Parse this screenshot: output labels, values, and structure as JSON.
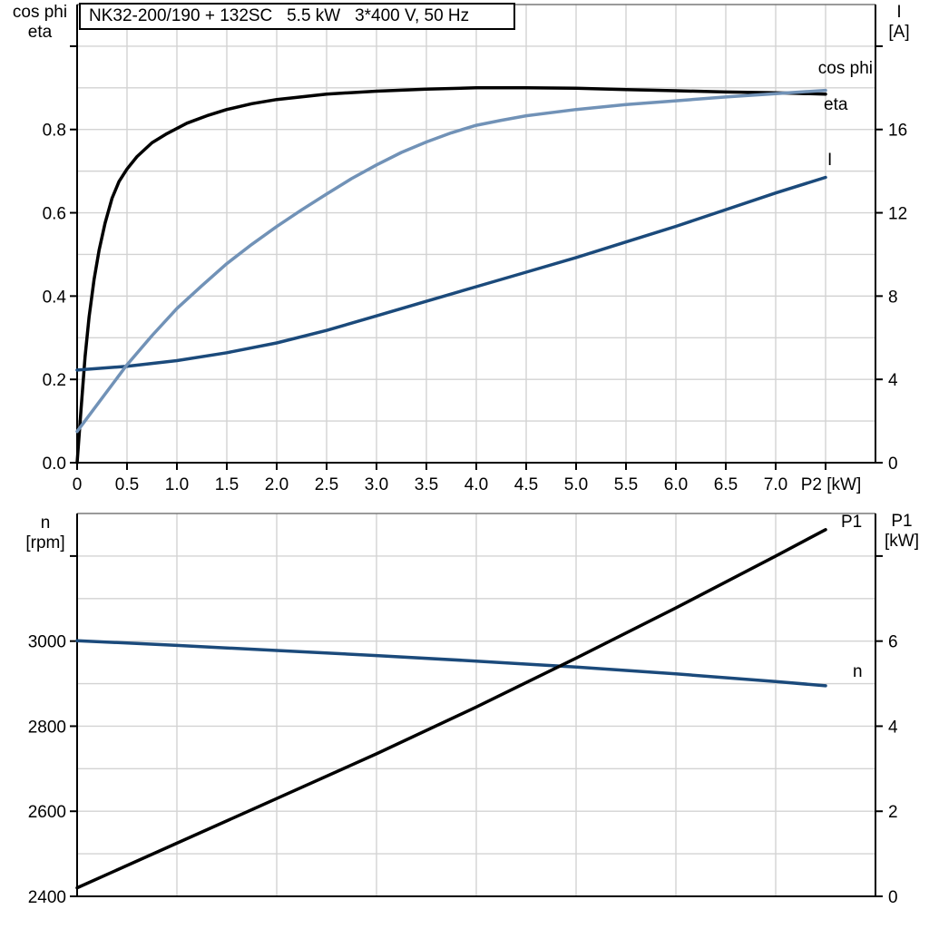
{
  "header": {
    "title": "NK32-200/190 + 132SC   5.5 kW   3*400 V, 50 Hz"
  },
  "colors": {
    "black_curve": "#000000",
    "light_blue_curve": "#7192B7",
    "dark_blue_curve": "#1B4A7B",
    "grid": "#D3D3D3",
    "frame": "#000000",
    "frame_top": "#787878",
    "background": "#FFFFFF"
  },
  "axis_corner_labels": {
    "top_left": [
      "cos phi",
      "eta"
    ],
    "top_right": [
      "I",
      "[A]"
    ],
    "bottom_left": [
      "n",
      "[rpm]"
    ],
    "bottom_right": [
      "P1",
      "[kW]"
    ]
  },
  "chart_data": [
    {
      "name": "motor-performance-top",
      "type": "line",
      "title": "NK32-200/190 + 132SC   5.5 kW   3*400 V, 50 Hz",
      "xlabel": "P2 [kW]",
      "xlim": [
        0,
        8
      ],
      "x_grid": [
        0.5,
        1,
        1.5,
        2,
        2.5,
        3,
        3.5,
        4,
        4.5,
        5,
        5.5,
        6,
        6.5,
        7,
        7.5
      ],
      "x_tick_values": [
        0,
        0.5,
        1,
        1.5,
        2,
        2.5,
        3,
        3.5,
        4,
        4.5,
        5,
        5.5,
        6,
        6.5,
        7,
        7.5
      ],
      "x_tick_labels": [
        "0",
        "0.5",
        "1.0",
        "1.5",
        "2.0",
        "2.5",
        "3.0",
        "3.5",
        "4.0",
        "4.5",
        "5.0",
        "5.5",
        "6.0",
        "6.5",
        "7.0",
        ""
      ],
      "left_axis": {
        "label": "cos phi / eta",
        "lim": [
          0,
          1.1
        ],
        "grid": [
          0.1,
          0.2,
          0.3,
          0.4,
          0.5,
          0.6,
          0.7,
          0.8,
          0.9,
          1.0
        ],
        "tick_values": [
          0,
          0.2,
          0.4,
          0.6,
          0.8,
          1.0
        ],
        "tick_labels": [
          "0.0",
          "0.2",
          "0.4",
          "0.6",
          "0.8",
          ""
        ]
      },
      "right_axis": {
        "label": "I [A]",
        "lim": [
          0,
          22
        ],
        "tick_values": [
          0,
          4,
          8,
          12,
          16,
          20
        ],
        "tick_labels": [
          "0",
          "4",
          "8",
          "12",
          "16",
          ""
        ]
      },
      "series": [
        {
          "name": "eta",
          "axis": "left",
          "color_key": "black_curve",
          "x": [
            0,
            0.04,
            0.08,
            0.12,
            0.17,
            0.22,
            0.28,
            0.35,
            0.42,
            0.5,
            0.6,
            0.75,
            0.9,
            1.1,
            1.3,
            1.5,
            1.75,
            2.0,
            2.5,
            3.0,
            3.5,
            4.0,
            4.5,
            5.0,
            5.5,
            6.0,
            6.5,
            7.0,
            7.5
          ],
          "y": [
            0,
            0.13,
            0.255,
            0.35,
            0.44,
            0.51,
            0.575,
            0.635,
            0.675,
            0.705,
            0.735,
            0.768,
            0.79,
            0.815,
            0.833,
            0.848,
            0.862,
            0.872,
            0.885,
            0.892,
            0.897,
            0.9,
            0.9,
            0.899,
            0.896,
            0.893,
            0.89,
            0.888,
            0.885
          ]
        },
        {
          "name": "I",
          "axis": "right",
          "color_key": "dark_blue_curve",
          "x": [
            0,
            0.5,
            1.0,
            1.5,
            2.0,
            2.5,
            3.0,
            3.5,
            4.0,
            4.5,
            5.0,
            5.5,
            6.0,
            6.5,
            7.0,
            7.5
          ],
          "y": [
            4.45,
            4.63,
            4.9,
            5.28,
            5.75,
            6.35,
            7.05,
            7.75,
            8.45,
            9.15,
            9.85,
            10.6,
            11.35,
            12.15,
            12.95,
            13.7
          ]
        },
        {
          "name": "cos phi",
          "axis": "left",
          "color_key": "light_blue_curve",
          "x": [
            0,
            0.25,
            0.5,
            0.75,
            1.0,
            1.25,
            1.5,
            1.75,
            2.0,
            2.25,
            2.5,
            2.75,
            3.0,
            3.25,
            3.5,
            3.75,
            4.0,
            4.25,
            4.5,
            5.0,
            5.5,
            6.0,
            6.5,
            7.0,
            7.5
          ],
          "y": [
            0.075,
            0.155,
            0.235,
            0.305,
            0.37,
            0.425,
            0.478,
            0.524,
            0.567,
            0.607,
            0.645,
            0.682,
            0.715,
            0.745,
            0.77,
            0.792,
            0.81,
            0.822,
            0.833,
            0.848,
            0.86,
            0.869,
            0.878,
            0.886,
            0.894
          ]
        }
      ]
    },
    {
      "name": "speed-power-bottom",
      "type": "line",
      "title": "",
      "xlabel": "",
      "xlim": [
        0,
        8
      ],
      "x_grid": [
        1,
        2,
        3,
        4,
        5,
        6,
        7
      ],
      "x_tick_values": [],
      "x_tick_labels": [],
      "left_axis": {
        "label": "n [rpm]",
        "lim": [
          2400,
          3300
        ],
        "grid": [
          2500,
          2600,
          2700,
          2800,
          2900,
          3000,
          3100,
          3200
        ],
        "tick_values": [
          2400,
          2600,
          2800,
          3000,
          3200
        ],
        "tick_labels": [
          "2400",
          "2600",
          "2800",
          "3000",
          ""
        ]
      },
      "right_axis": {
        "label": "P1 [kW]",
        "lim": [
          0,
          9
        ],
        "tick_values": [
          0,
          2,
          4,
          6,
          8
        ],
        "tick_labels": [
          "0",
          "2",
          "4",
          "6",
          ""
        ]
      },
      "series": [
        {
          "name": "n",
          "axis": "left",
          "color_key": "dark_blue_curve",
          "x": [
            0,
            1,
            2,
            3,
            4,
            5,
            6,
            7,
            7.5
          ],
          "y": [
            3001,
            2990,
            2978,
            2966,
            2953,
            2939,
            2923,
            2905,
            2895
          ]
        },
        {
          "name": "P1",
          "axis": "right",
          "color_key": "black_curve",
          "x": [
            0,
            1,
            2,
            3,
            4,
            5,
            6,
            7,
            7.5
          ],
          "y": [
            0.2,
            1.25,
            2.3,
            3.35,
            4.45,
            5.6,
            6.78,
            8.0,
            8.62
          ]
        }
      ]
    }
  ]
}
